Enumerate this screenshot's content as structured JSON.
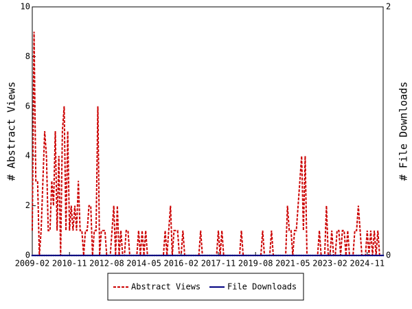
{
  "chart_data": {
    "type": "line",
    "ylabel": "# Abstract Views",
    "y2label": "# File Downloads",
    "ylim": [
      0,
      10
    ],
    "yticks": [
      0,
      2,
      4,
      6,
      8,
      10
    ],
    "y2lim": [
      0,
      2
    ],
    "y2ticks": [
      0,
      2
    ],
    "xlim": [
      "2009-02",
      "2025-08"
    ],
    "xticks": [
      "2009-02",
      "2010-11",
      "2012-08",
      "2014-05",
      "2016-02",
      "2017-11",
      "2019-08",
      "2021-05",
      "2023-02",
      "2024-11"
    ],
    "x": [
      "2009-02",
      "2009-03",
      "2009-04",
      "2009-05",
      "2009-06",
      "2009-07",
      "2009-08",
      "2009-09",
      "2009-10",
      "2009-11",
      "2009-12",
      "2010-01",
      "2010-02",
      "2010-03",
      "2010-04",
      "2010-05",
      "2010-06",
      "2010-07",
      "2010-08",
      "2010-09",
      "2010-10",
      "2010-11",
      "2010-12",
      "2011-01",
      "2011-02",
      "2011-03",
      "2011-04",
      "2011-05",
      "2011-06",
      "2011-07",
      "2011-08",
      "2011-09",
      "2011-10",
      "2011-11",
      "2011-12",
      "2012-01",
      "2012-02",
      "2012-03",
      "2012-04",
      "2012-05",
      "2012-06",
      "2012-07",
      "2012-08",
      "2012-09",
      "2012-10",
      "2012-11",
      "2012-12",
      "2013-01",
      "2013-02",
      "2013-03",
      "2013-04",
      "2013-05",
      "2013-06",
      "2013-07",
      "2013-08",
      "2013-09",
      "2013-10",
      "2013-11",
      "2013-12",
      "2014-01",
      "2014-02",
      "2014-03",
      "2014-04",
      "2014-05",
      "2014-06",
      "2014-07",
      "2014-08",
      "2014-09",
      "2014-10",
      "2014-11",
      "2014-12",
      "2015-01",
      "2015-02",
      "2015-03",
      "2015-04",
      "2015-05",
      "2015-06",
      "2015-07",
      "2015-08",
      "2015-09",
      "2015-10",
      "2015-11",
      "2015-12",
      "2016-01",
      "2016-02",
      "2016-03",
      "2016-04",
      "2016-05",
      "2016-06",
      "2016-07",
      "2016-08",
      "2016-09",
      "2016-10",
      "2016-11",
      "2016-12",
      "2017-01",
      "2017-02",
      "2017-03",
      "2017-04",
      "2017-05",
      "2017-06",
      "2017-07",
      "2017-08",
      "2017-09",
      "2017-10",
      "2017-11",
      "2017-12",
      "2018-01",
      "2018-02",
      "2018-03",
      "2018-04",
      "2018-05",
      "2018-06",
      "2018-07",
      "2018-08",
      "2018-09",
      "2018-10",
      "2018-11",
      "2018-12",
      "2019-01",
      "2019-02",
      "2019-03",
      "2019-04",
      "2019-05",
      "2019-06",
      "2019-07",
      "2019-08",
      "2019-09",
      "2019-10",
      "2019-11",
      "2019-12",
      "2020-01",
      "2020-02",
      "2020-03",
      "2020-04",
      "2020-05",
      "2020-06",
      "2020-07",
      "2020-08",
      "2020-09",
      "2020-10",
      "2020-11",
      "2020-12",
      "2021-01",
      "2021-02",
      "2021-03",
      "2021-04",
      "2021-05",
      "2021-06",
      "2021-07",
      "2021-08",
      "2021-09",
      "2021-10",
      "2021-11",
      "2021-12",
      "2022-01",
      "2022-02",
      "2022-03",
      "2022-04",
      "2022-05",
      "2022-06",
      "2022-07",
      "2022-08",
      "2022-09",
      "2022-10",
      "2022-11",
      "2022-12",
      "2023-01",
      "2023-02",
      "2023-03",
      "2023-04",
      "2023-05",
      "2023-06",
      "2023-07",
      "2023-08",
      "2023-09",
      "2023-10",
      "2023-11",
      "2023-12",
      "2024-01",
      "2024-02",
      "2024-03",
      "2024-04",
      "2024-05",
      "2024-06",
      "2024-07",
      "2024-08",
      "2024-09",
      "2024-10",
      "2024-11",
      "2024-12",
      "2025-01",
      "2025-02",
      "2025-03",
      "2025-04",
      "2025-05",
      "2025-06",
      "2025-07",
      "2025-08"
    ],
    "series": [
      {
        "name": "Abstract Views",
        "color": "#cc0000",
        "dashed": true,
        "values": [
          1,
          9,
          3,
          3,
          0,
          1,
          3,
          5,
          4,
          1,
          1,
          3,
          2,
          5,
          1,
          4,
          0,
          5,
          6,
          1,
          5,
          1,
          2,
          1,
          2,
          1,
          3,
          1,
          1,
          0,
          1,
          1,
          2,
          2,
          0,
          1,
          1,
          6,
          0,
          1,
          1,
          1,
          0,
          0,
          0,
          1,
          2,
          0,
          2,
          0,
          1,
          0,
          0,
          1,
          1,
          0,
          0,
          0,
          0,
          0,
          1,
          0,
          1,
          0,
          1,
          0,
          0,
          0,
          0,
          0,
          0,
          0,
          0,
          0,
          0,
          1,
          0,
          1,
          2,
          0,
          1,
          1,
          1,
          0,
          0,
          1,
          0,
          0,
          0,
          0,
          0,
          0,
          0,
          0,
          0,
          1,
          0,
          0,
          0,
          0,
          0,
          0,
          0,
          0,
          0,
          1,
          0,
          1,
          0,
          0,
          0,
          0,
          0,
          0,
          0,
          0,
          0,
          0,
          1,
          0,
          0,
          0,
          0,
          0,
          0,
          0,
          0,
          0,
          0,
          0,
          1,
          0,
          0,
          0,
          0,
          1,
          0,
          0,
          0,
          0,
          0,
          0,
          0,
          0,
          2,
          1,
          1,
          0,
          1,
          1,
          2,
          3,
          4,
          1,
          4,
          0,
          0,
          0,
          0,
          0,
          0,
          0,
          1,
          0,
          0,
          0,
          2,
          0,
          0,
          1,
          0,
          0,
          1,
          1,
          0,
          1,
          1,
          0,
          1,
          0,
          0,
          0,
          1,
          1,
          2,
          1,
          0,
          0,
          0,
          1,
          0,
          1,
          0,
          1,
          0,
          1,
          0,
          0,
          0
        ]
      },
      {
        "name": "File Downloads",
        "color": "#000080",
        "axis": "y2",
        "dashed": false,
        "values": [
          0,
          0,
          0,
          0,
          0,
          0,
          0,
          0,
          0,
          0,
          0,
          0,
          0,
          0,
          0,
          0,
          0,
          0,
          0,
          0,
          0,
          0,
          0,
          0,
          0,
          0,
          0,
          0,
          0,
          0,
          0,
          0,
          0,
          0,
          0,
          0,
          0,
          0,
          0,
          0,
          0,
          0,
          0,
          0,
          0,
          0,
          0,
          0,
          0,
          0,
          0,
          0,
          0,
          0,
          0,
          0,
          0,
          0,
          0,
          0,
          0,
          0,
          0,
          0,
          0,
          0,
          0,
          0,
          0,
          0,
          0,
          0,
          0,
          0,
          0,
          0,
          0,
          0,
          0,
          0,
          0,
          0,
          0,
          0,
          0,
          0,
          0,
          0,
          0,
          0,
          0,
          0,
          0,
          0,
          0,
          0,
          0,
          0,
          0,
          0,
          0,
          0,
          0,
          0,
          0,
          0,
          0,
          0,
          0,
          0,
          0,
          0,
          0,
          0,
          0,
          0,
          0,
          0,
          0,
          0,
          0,
          0,
          0,
          0,
          0,
          0,
          0,
          0,
          0,
          0,
          0,
          0,
          0,
          0,
          0,
          0,
          0,
          0,
          0,
          0,
          0,
          0,
          0,
          0,
          0,
          0,
          0,
          0,
          0,
          0,
          0,
          0,
          0,
          0,
          0,
          0,
          0,
          0,
          0,
          0,
          0,
          0,
          0,
          0,
          0,
          0,
          0,
          0,
          0,
          0,
          0,
          0,
          0,
          0,
          0,
          0,
          0,
          0,
          0,
          0,
          0,
          0,
          0,
          0,
          0,
          0,
          0,
          0,
          0,
          0,
          0,
          0,
          0,
          0,
          0,
          0,
          0,
          0,
          0
        ]
      }
    ]
  }
}
